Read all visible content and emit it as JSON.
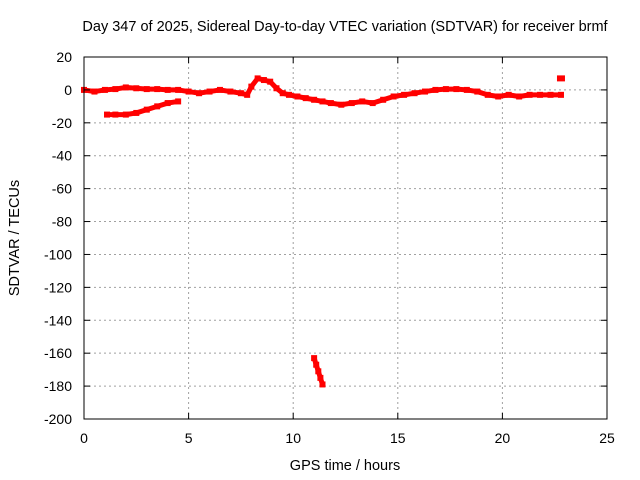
{
  "chart_data": {
    "type": "scatter",
    "title": "Day 347 of 2025, Sidereal Day-to-day VTEC variation (SDTVAR) for receiver brmf",
    "xlabel": "GPS time / hours",
    "ylabel": "SDTVAR / TECUs",
    "xlim": [
      0,
      25
    ],
    "ylim": [
      -200,
      20
    ],
    "xticks": [
      0,
      5,
      10,
      15,
      20,
      25
    ],
    "yticks": [
      20,
      0,
      -20,
      -40,
      -60,
      -80,
      -100,
      -120,
      -140,
      -160,
      -180,
      -200
    ],
    "xtick_labels": [
      "0",
      "5",
      "10",
      "15",
      "20",
      "25"
    ],
    "ytick_labels": [
      "20",
      "0",
      "-20",
      "-40",
      "-60",
      "-80",
      "-100",
      "-120",
      "-140",
      "-160",
      "-180",
      "-200"
    ],
    "grid": true,
    "marker_color": "#ff0000",
    "series": [
      {
        "name": "main",
        "x": [
          0.0,
          0.5,
          1.0,
          1.5,
          2.0,
          2.5,
          3.0,
          3.5,
          4.0,
          4.5,
          5.0,
          5.5,
          6.0,
          6.5,
          7.0,
          7.5,
          7.8,
          8.0,
          8.3,
          8.6,
          8.9,
          9.2,
          9.5,
          9.8,
          10.2,
          10.6,
          11.0,
          11.4,
          11.8,
          12.3,
          12.8,
          13.3,
          13.8,
          14.3,
          14.8,
          15.3,
          15.8,
          16.3,
          16.8,
          17.3,
          17.8,
          18.3,
          18.8,
          19.3,
          19.8,
          20.3,
          20.8,
          21.3,
          21.8,
          22.3,
          22.8
        ],
        "y": [
          0,
          -1,
          0,
          0.5,
          1.5,
          1,
          0.5,
          0.5,
          0,
          0,
          -1,
          -2,
          -1,
          0,
          -1,
          -2,
          -3,
          2,
          7,
          6,
          5,
          1,
          -2,
          -3,
          -4,
          -5,
          -6,
          -7,
          -8,
          -9,
          -8,
          -7,
          -8,
          -6,
          -4,
          -3,
          -2,
          -1,
          0,
          0.5,
          0.5,
          0,
          -1,
          -3,
          -4,
          -3,
          -4,
          -3,
          -3,
          -3,
          -3
        ]
      },
      {
        "name": "early-arc",
        "x": [
          1.1,
          1.5,
          2.0,
          2.5,
          3.0,
          3.5,
          4.0,
          4.5
        ],
        "y": [
          -15,
          -15,
          -15,
          -14,
          -12,
          -10,
          -8,
          -7
        ]
      },
      {
        "name": "outlier-drop",
        "x": [
          11.0,
          11.1,
          11.2,
          11.3,
          11.4
        ],
        "y": [
          -163,
          -167,
          -171,
          -175,
          -179
        ]
      },
      {
        "name": "late-point",
        "x": [
          22.8
        ],
        "y": [
          7
        ]
      }
    ]
  }
}
